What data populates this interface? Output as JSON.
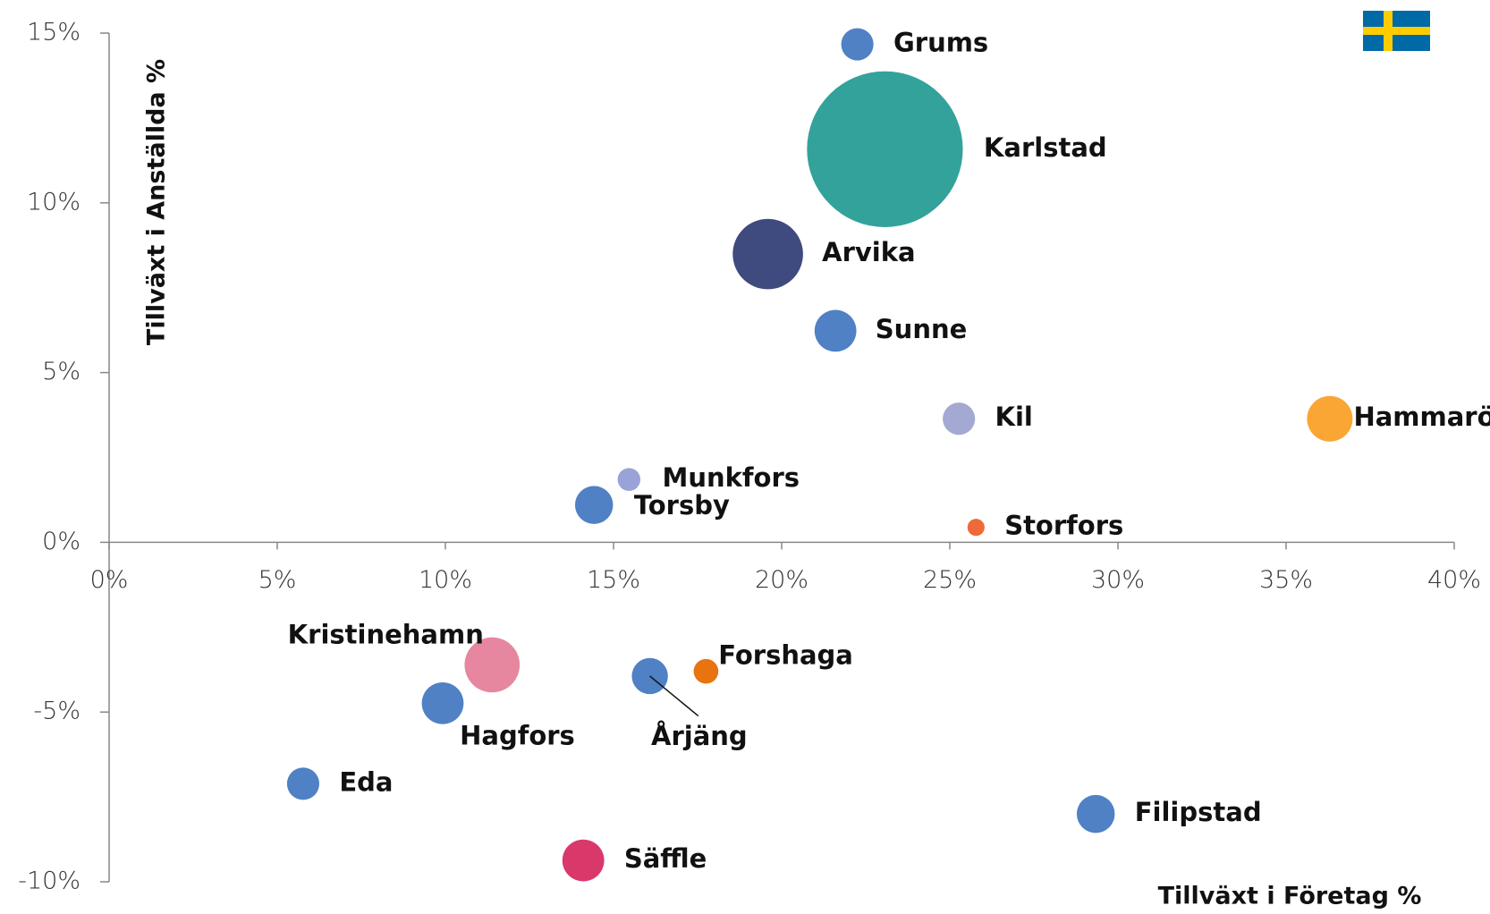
{
  "chart_data": {
    "type": "bubble",
    "x_label": "Tillväxt i Företag %",
    "y_label": "Tillväxt i Anställda %",
    "labels": [
      "Grums",
      "Karlstad",
      "Arvika",
      "Sunne",
      "Kil",
      "Hammarö",
      "Munkfors",
      "Torsby",
      "Storfors",
      "Kristinehamn",
      "Hagfors",
      "Årjäng",
      "Forshaga",
      "Eda",
      "Filipstad",
      "Säffle"
    ],
    "x": [
      22.25,
      23.07,
      19.59,
      21.6,
      25.27,
      36.3,
      15.46,
      14.42,
      25.78,
      11.39,
      9.92,
      16.08,
      17.75,
      5.77,
      29.34,
      14.1
    ],
    "values": [
      14.67,
      11.58,
      8.49,
      6.23,
      3.64,
      3.64,
      1.85,
      1.1,
      0.44,
      -3.61,
      -4.74,
      -3.94,
      -3.8,
      -7.11,
      -8.0,
      -9.37
    ],
    "sizes": [
      289,
      6724,
      1369,
      484,
      289,
      576,
      144,
      400,
      81,
      841,
      484,
      361,
      169,
      289,
      400,
      484
    ],
    "colors": [
      "#4f81c4",
      "#33a29b",
      "#3f4a7e",
      "#4f81c4",
      "#a3a9d2",
      "#f9a635",
      "#9aa3d7",
      "#4f81c4",
      "#ef6a3a",
      "#e7879f",
      "#4f81c4",
      "#4f81c4",
      "#e8730f",
      "#4f81c4",
      "#4f81c4",
      "#d9386a"
    ],
    "xlim": [
      0,
      40
    ],
    "xticks": [
      {
        "value": 0,
        "label": "0%"
      },
      {
        "value": 5,
        "label": "5%"
      },
      {
        "value": 10,
        "label": "10%"
      },
      {
        "value": 15,
        "label": "15%"
      },
      {
        "value": 20,
        "label": "20%"
      },
      {
        "value": 25,
        "label": "25%"
      },
      {
        "value": 30,
        "label": "30%"
      },
      {
        "value": 35,
        "label": "35%"
      },
      {
        "value": 40,
        "label": "40%"
      }
    ],
    "ylim": [
      -10,
      15
    ],
    "yticks": [
      {
        "value": -10,
        "label": "-10%"
      },
      {
        "value": -5,
        "label": "-5%"
      },
      {
        "value": 0,
        "label": "0%"
      },
      {
        "value": 5,
        "label": "5%"
      },
      {
        "value": 10,
        "label": "10%"
      },
      {
        "value": 15,
        "label": "15%"
      }
    ]
  }
}
